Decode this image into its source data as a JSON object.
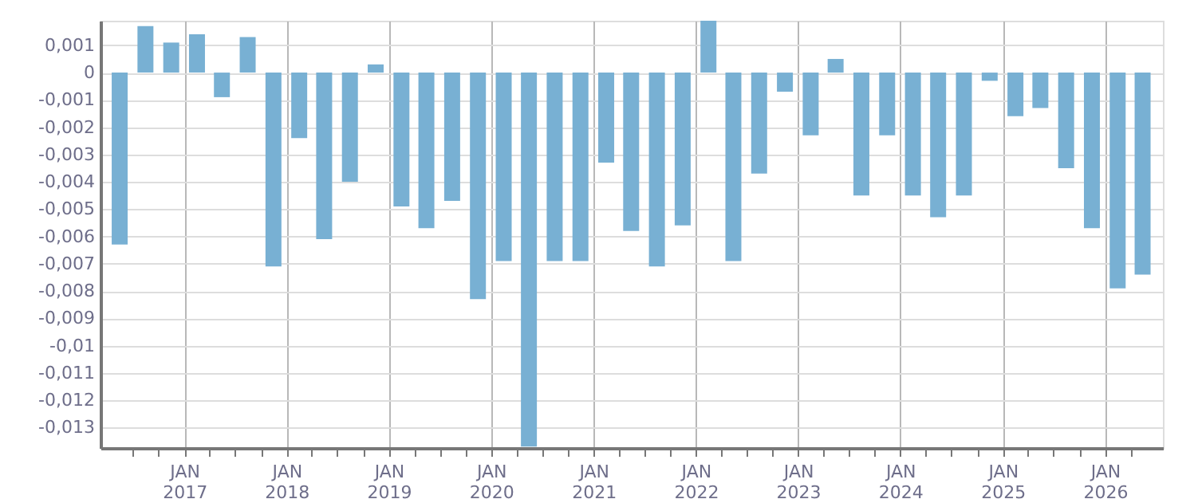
{
  "chart_data": {
    "type": "bar",
    "x": [
      "2016-05-15",
      "2016-08-15",
      "2016-11-15",
      "2017-02-15",
      "2017-05-15",
      "2017-08-15",
      "2017-11-15",
      "2018-02-15",
      "2018-05-15",
      "2018-08-15",
      "2018-11-15",
      "2019-02-15",
      "2019-05-15",
      "2019-08-15",
      "2019-11-15",
      "2020-02-15",
      "2020-05-15",
      "2020-08-15",
      "2020-11-15",
      "2021-02-15",
      "2021-05-15",
      "2021-08-15",
      "2021-11-15",
      "2022-02-15",
      "2022-05-15",
      "2022-08-15",
      "2022-11-15",
      "2023-02-15",
      "2023-05-15",
      "2023-08-15",
      "2023-11-15",
      "2024-02-15",
      "2024-05-15",
      "2024-08-15",
      "2024-11-15",
      "2025-02-15",
      "2025-05-15",
      "2025-08-15",
      "2025-11-15",
      "2026-02-15",
      "2026-05-15"
    ],
    "values": [
      -0.0063,
      0.0017,
      0.0011,
      0.0014,
      -0.0009,
      0.0013,
      -0.0071,
      -0.0024,
      -0.0061,
      -0.004,
      0.0003,
      -0.0049,
      -0.0057,
      -0.0047,
      -0.0083,
      -0.0069,
      -0.0137,
      -0.0069,
      -0.0069,
      -0.0033,
      -0.0058,
      -0.0071,
      -0.0056,
      0.0019,
      -0.0069,
      -0.0037,
      -0.0007,
      -0.0023,
      0.0005,
      -0.0045,
      -0.0023,
      -0.0045,
      -0.0053,
      -0.0045,
      -0.0003,
      -0.0016,
      -0.0013,
      -0.0035,
      -0.0057,
      -0.0079,
      -0.0074
    ],
    "color": "#78b0d3",
    "xlim": [
      "2016-04-05",
      "2026-06-28"
    ],
    "xticks": [
      {
        "value": "2016-07-01",
        "label": null
      },
      {
        "value": "2016-10-01",
        "label": null
      },
      {
        "value": "2017-01-01",
        "label": "JAN 2017"
      },
      {
        "value": "2017-04-01",
        "label": null
      },
      {
        "value": "2017-07-01",
        "label": null
      },
      {
        "value": "2017-10-01",
        "label": null
      },
      {
        "value": "2018-01-01",
        "label": "JAN 2018"
      },
      {
        "value": "2018-04-01",
        "label": null
      },
      {
        "value": "2018-07-01",
        "label": null
      },
      {
        "value": "2018-10-01",
        "label": null
      },
      {
        "value": "2019-01-01",
        "label": "JAN 2019"
      },
      {
        "value": "2019-04-01",
        "label": null
      },
      {
        "value": "2019-07-01",
        "label": null
      },
      {
        "value": "2019-10-01",
        "label": null
      },
      {
        "value": "2020-01-01",
        "label": "JAN 2020"
      },
      {
        "value": "2020-04-01",
        "label": null
      },
      {
        "value": "2020-07-01",
        "label": null
      },
      {
        "value": "2020-10-01",
        "label": null
      },
      {
        "value": "2021-01-01",
        "label": "JAN 2021"
      },
      {
        "value": "2021-04-01",
        "label": null
      },
      {
        "value": "2021-07-01",
        "label": null
      },
      {
        "value": "2021-10-01",
        "label": null
      },
      {
        "value": "2022-01-01",
        "label": "JAN 2022"
      },
      {
        "value": "2022-04-01",
        "label": null
      },
      {
        "value": "2022-07-01",
        "label": null
      },
      {
        "value": "2022-10-01",
        "label": null
      },
      {
        "value": "2023-01-01",
        "label": "JAN 2023"
      },
      {
        "value": "2023-04-01",
        "label": null
      },
      {
        "value": "2023-07-01",
        "label": null
      },
      {
        "value": "2023-10-01",
        "label": null
      },
      {
        "value": "2024-01-01",
        "label": "JAN 2024"
      },
      {
        "value": "2024-04-01",
        "label": null
      },
      {
        "value": "2024-07-01",
        "label": null
      },
      {
        "value": "2024-10-01",
        "label": null
      },
      {
        "value": "2025-01-01",
        "label": "JAN 2025"
      },
      {
        "value": "2025-04-01",
        "label": null
      },
      {
        "value": "2025-07-01",
        "label": null
      },
      {
        "value": "2025-10-01",
        "label": null
      },
      {
        "value": "2026-01-01",
        "label": "JAN 2026"
      },
      {
        "value": "2026-04-01",
        "label": null
      }
    ],
    "ylim": [
      -0.01375,
      0.0019
    ],
    "yticks": [
      {
        "value": 0.001,
        "label": "0,001"
      },
      {
        "value": 0,
        "label": "0"
      },
      {
        "value": -0.001,
        "label": "-0,001"
      },
      {
        "value": -0.002,
        "label": "-0,002"
      },
      {
        "value": -0.003,
        "label": "-0,003"
      },
      {
        "value": -0.004,
        "label": "-0,004"
      },
      {
        "value": -0.005,
        "label": "-0,005"
      },
      {
        "value": -0.006,
        "label": "-0,006"
      },
      {
        "value": -0.007,
        "label": "-0,007"
      },
      {
        "value": -0.008,
        "label": "-0,008"
      },
      {
        "value": -0.009,
        "label": "-0,009"
      },
      {
        "value": -0.01,
        "label": "-0,01"
      },
      {
        "value": -0.011,
        "label": "-0,011"
      },
      {
        "value": -0.012,
        "label": "-0,012"
      },
      {
        "value": -0.013,
        "label": "-0,013"
      }
    ],
    "grid": true
  }
}
